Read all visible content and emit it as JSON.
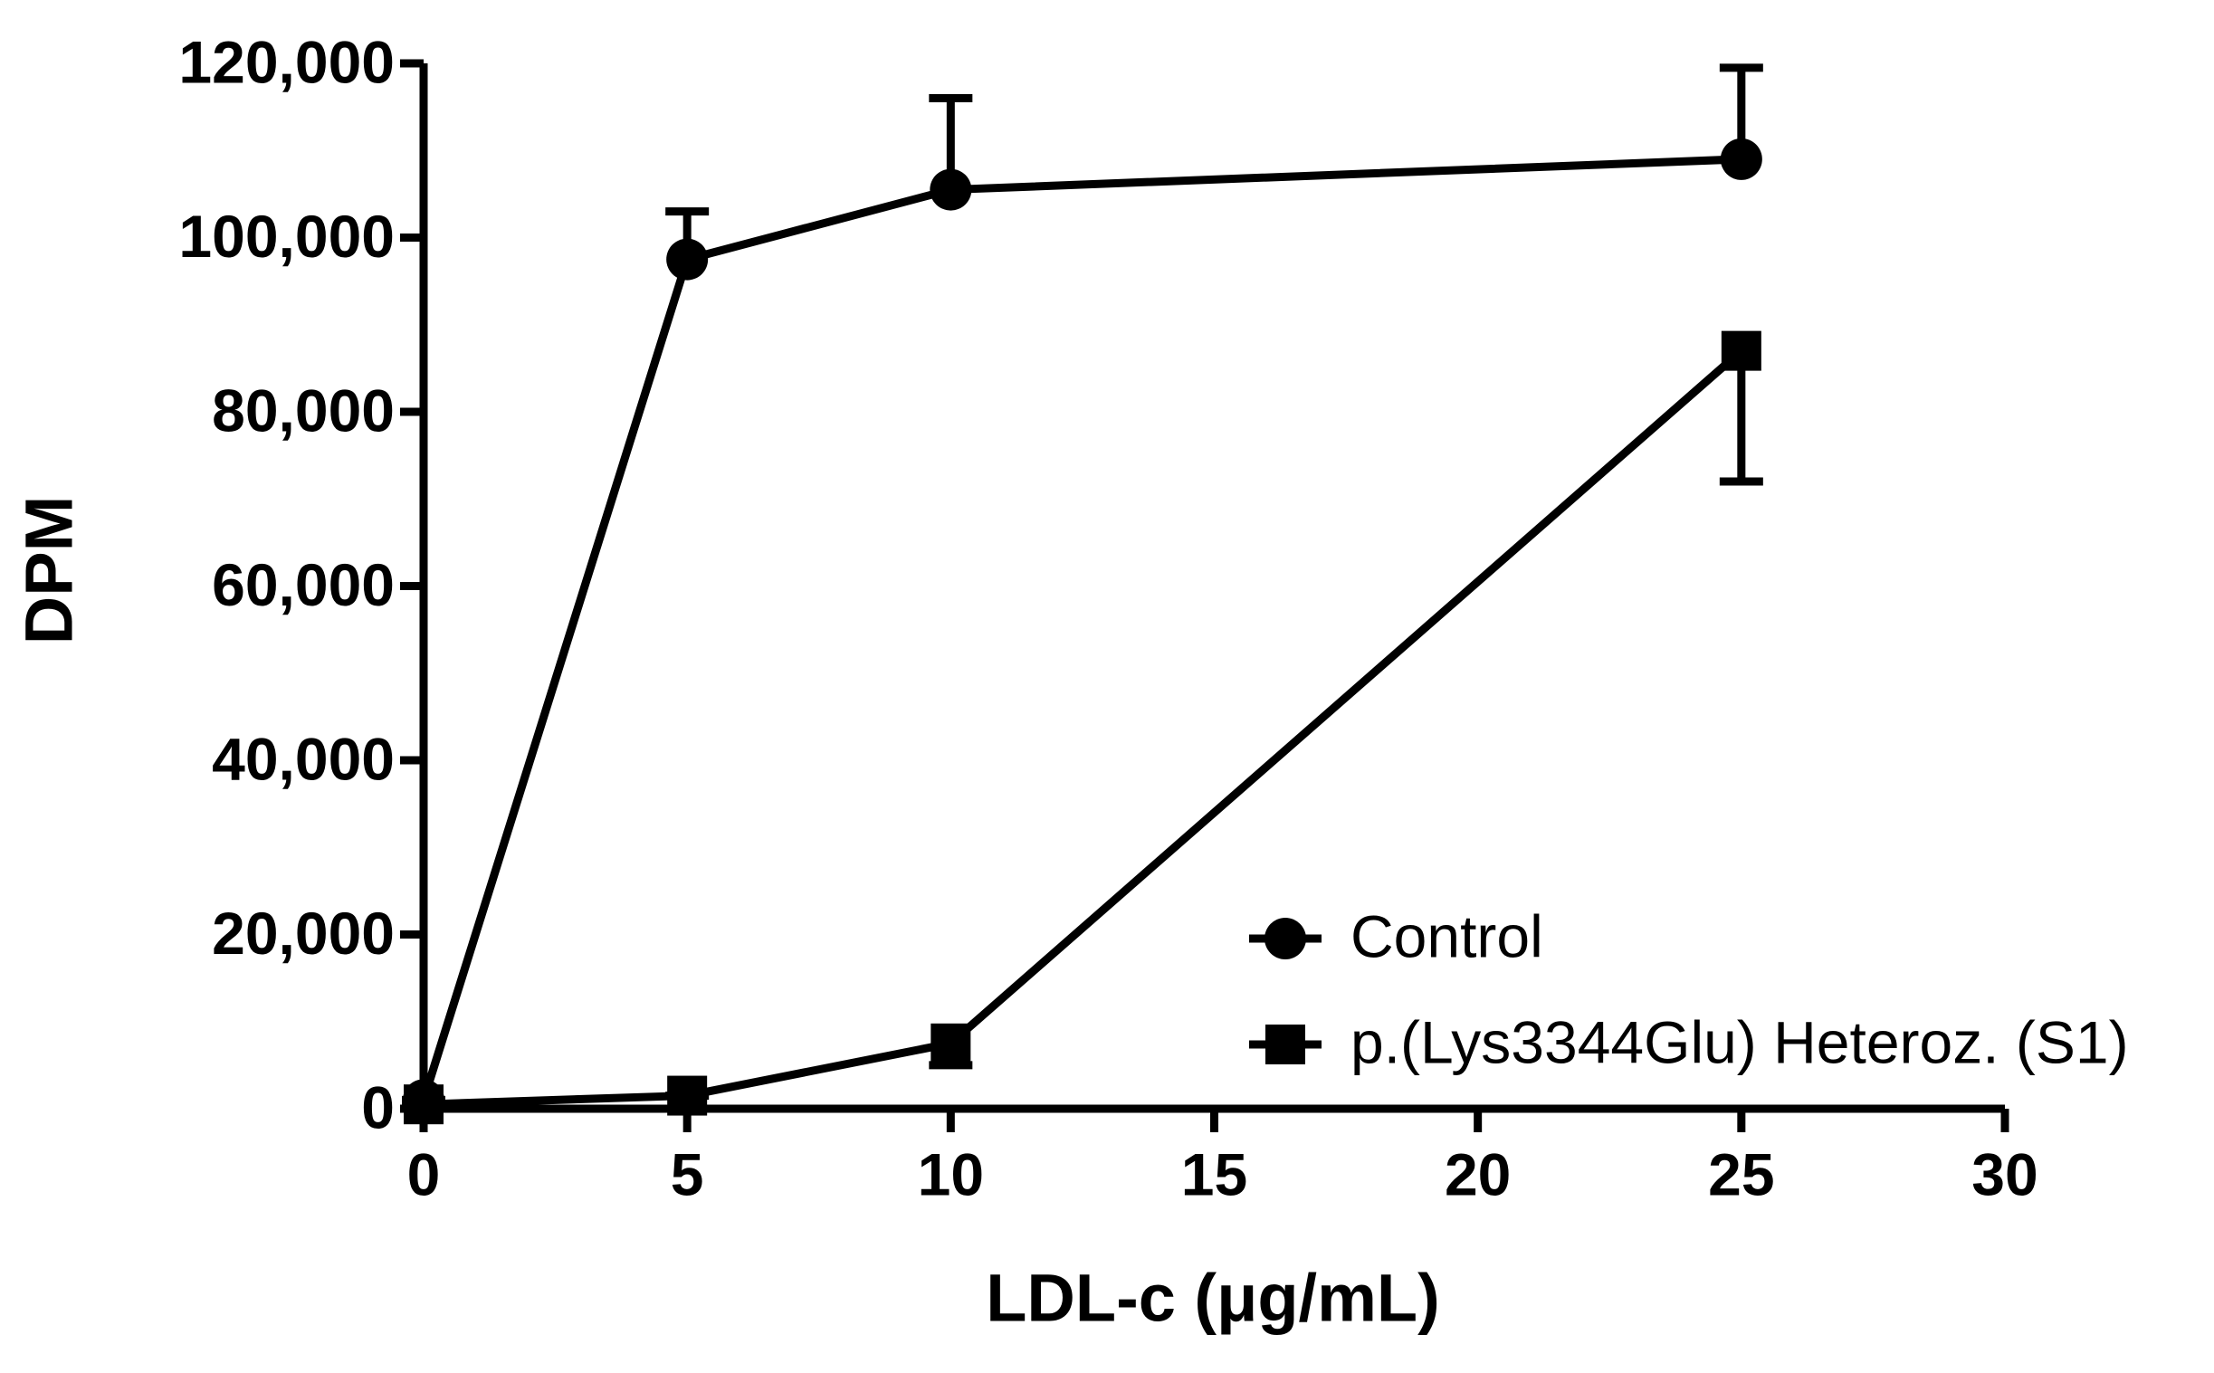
{
  "chart_data": {
    "type": "line",
    "x_label": "LDL-c (μg/mL)",
    "y_label": "DPM",
    "x": [
      0,
      5,
      10,
      25
    ],
    "series": [
      {
        "name": "Control",
        "color": "#000000",
        "marker": "circle",
        "error_bar": "upper",
        "values": [
          1000,
          97500,
          105500,
          109000
        ],
        "errors": [
          0,
          5500,
          10500,
          10500
        ]
      },
      {
        "name": "p.(Lys3344Glu) Heteroz. (S1)",
        "color": "#000000",
        "marker": "square",
        "error_bar": "lower",
        "values": [
          500,
          1500,
          7500,
          87000
        ],
        "errors": [
          0,
          0,
          2500,
          15000
        ]
      }
    ],
    "xlim": [
      0,
      30
    ],
    "xticks": [
      0,
      5,
      10,
      15,
      20,
      25,
      30
    ],
    "ylim": [
      0,
      120000
    ],
    "yticks": [
      0,
      {
        "value": 20000,
        "label": "20,000"
      },
      {
        "value": 40000,
        "label": "40,000"
      },
      {
        "value": 60000,
        "label": "60,000"
      },
      {
        "value": 80000,
        "label": "80,000"
      },
      {
        "value": 100000,
        "label": "100,000"
      },
      {
        "value": 120000,
        "label": "120,000"
      }
    ],
    "grid": false,
    "legend": "lower right"
  }
}
